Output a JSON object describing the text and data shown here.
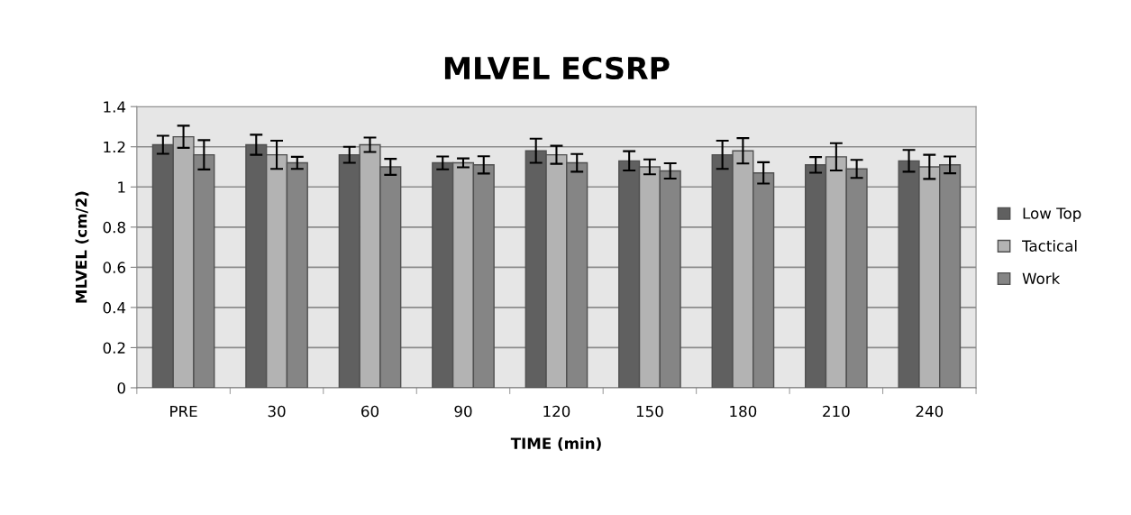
{
  "chart_data": {
    "type": "bar",
    "title": "MLVEL ECSRP",
    "xlabel": "TIME (min)",
    "ylabel": "MLVEL (cm/2)",
    "categories": [
      "PRE",
      "30",
      "60",
      "90",
      "120",
      "150",
      "180",
      "210",
      "240"
    ],
    "series": [
      {
        "name": "Low Top",
        "color": "#606060",
        "values": [
          1.21,
          1.21,
          1.16,
          1.12,
          1.18,
          1.13,
          1.16,
          1.11,
          1.13
        ],
        "errors": [
          0.045,
          0.05,
          0.04,
          0.032,
          0.06,
          0.048,
          0.07,
          0.039,
          0.054
        ]
      },
      {
        "name": "Tactical",
        "color": "#b3b3b3",
        "values": [
          1.25,
          1.16,
          1.21,
          1.12,
          1.16,
          1.1,
          1.18,
          1.15,
          1.1
        ],
        "errors": [
          0.055,
          0.07,
          0.036,
          0.022,
          0.045,
          0.037,
          0.063,
          0.068,
          0.06
        ]
      },
      {
        "name": "Work",
        "color": "#858585",
        "values": [
          1.16,
          1.12,
          1.1,
          1.11,
          1.12,
          1.08,
          1.07,
          1.09,
          1.11
        ],
        "errors": [
          0.073,
          0.03,
          0.04,
          0.043,
          0.044,
          0.038,
          0.053,
          0.045,
          0.042
        ]
      }
    ],
    "ylim": [
      0,
      1.4
    ],
    "yticks": [
      0,
      0.2,
      0.4,
      0.6,
      0.8,
      1,
      1.2,
      1.4
    ],
    "grid": "y",
    "legend": "right"
  }
}
